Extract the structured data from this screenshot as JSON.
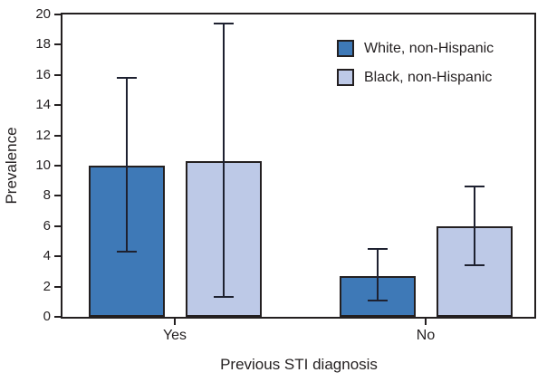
{
  "chart_data": {
    "type": "bar",
    "title": "",
    "xlabel": "Previous STI diagnosis",
    "ylabel": "Prevalence",
    "categories": [
      "Yes",
      "No"
    ],
    "series": [
      {
        "name": "White, non-Hispanic",
        "color": "#3e79b7",
        "values": [
          10.0,
          2.7
        ],
        "ci_low": [
          4.3,
          1.1
        ],
        "ci_high": [
          15.8,
          4.5
        ]
      },
      {
        "name": "Black, non-Hispanic",
        "color": "#bdc9e7",
        "values": [
          10.3,
          6.0
        ],
        "ci_low": [
          1.3,
          3.4
        ],
        "ci_high": [
          19.4,
          8.6
        ]
      }
    ],
    "ylim": [
      0,
      20
    ],
    "yticks": [
      0,
      2,
      4,
      6,
      8,
      10,
      12,
      14,
      16,
      18,
      20
    ],
    "grid": false,
    "error_bars": true,
    "legend_position": "top-right",
    "axis_color": "#231f20",
    "error_bar_color": "#1e2130",
    "background_color": "#ffffff"
  }
}
